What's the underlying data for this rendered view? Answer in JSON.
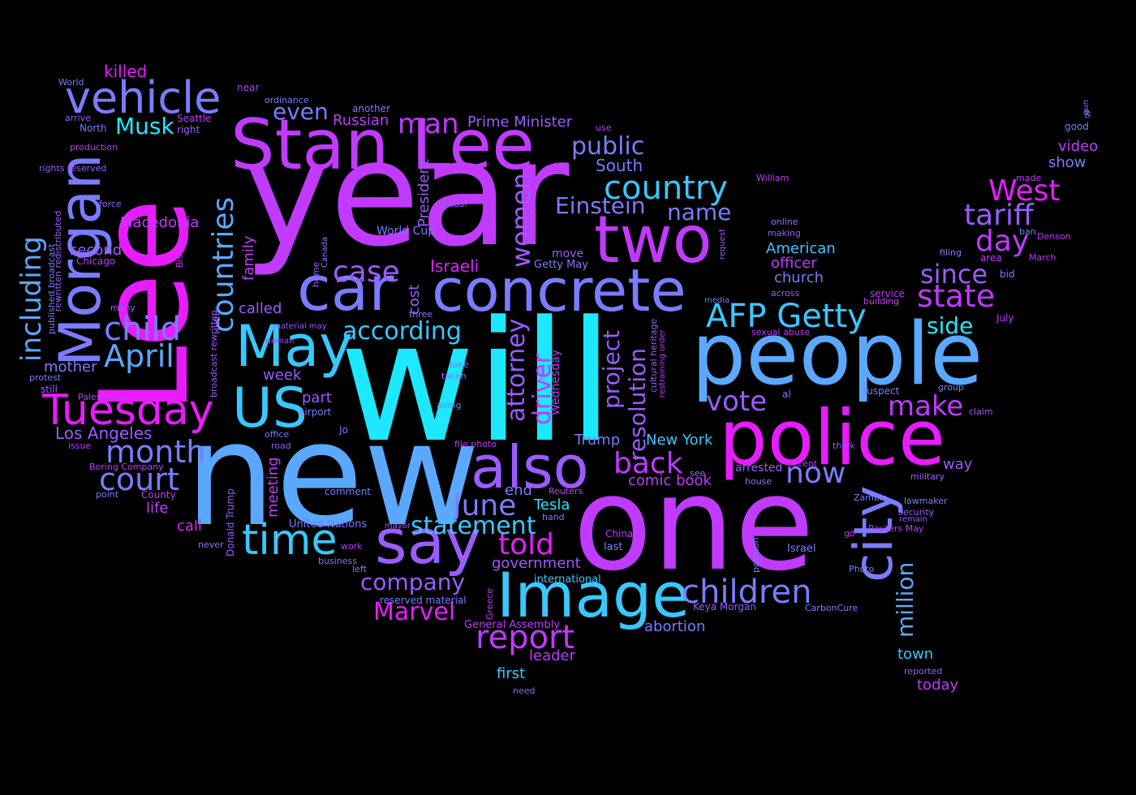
{
  "colors": {
    "background": "#000000",
    "magenta": "#e81cff",
    "violet": "#c03aff",
    "purple": "#9a5cff",
    "indigo": "#7a7cff",
    "blue": "#5aa8ff",
    "sky": "#38c8ff",
    "cyan": "#1ee8ff"
  },
  "words": [
    {
      "text": "will",
      "color": "cyan"
    },
    {
      "text": "new",
      "color": "blue"
    },
    {
      "text": "one",
      "color": "violet"
    },
    {
      "text": "year",
      "color": "violet"
    },
    {
      "text": "Lee",
      "color": "magenta"
    },
    {
      "text": "people",
      "color": "blue"
    },
    {
      "text": "police",
      "color": "magenta"
    },
    {
      "text": "Stan Lee",
      "color": "violet"
    },
    {
      "text": "concrete",
      "color": "indigo"
    },
    {
      "text": "two",
      "color": "violet"
    },
    {
      "text": "car",
      "color": "indigo"
    },
    {
      "text": "Morgan",
      "color": "indigo"
    },
    {
      "text": "Image",
      "color": "sky"
    },
    {
      "text": "say",
      "color": "purple"
    },
    {
      "text": "also",
      "color": "purple"
    },
    {
      "text": "May",
      "color": "sky"
    },
    {
      "text": "US",
      "color": "sky"
    },
    {
      "text": "city",
      "color": "indigo"
    },
    {
      "text": "vehicle",
      "color": "indigo"
    },
    {
      "text": "Tuesday",
      "color": "magenta"
    },
    {
      "text": "time",
      "color": "sky"
    },
    {
      "text": "AFP Getty",
      "color": "sky"
    },
    {
      "text": "children",
      "color": "indigo"
    },
    {
      "text": "report",
      "color": "violet"
    },
    {
      "text": "country",
      "color": "sky"
    },
    {
      "text": "child",
      "color": "indigo"
    },
    {
      "text": "April",
      "color": "blue"
    },
    {
      "text": "countries",
      "color": "blue"
    },
    {
      "text": "including",
      "color": "blue"
    },
    {
      "text": "court",
      "color": "indigo"
    },
    {
      "text": "month",
      "color": "indigo"
    },
    {
      "text": "state",
      "color": "violet"
    },
    {
      "text": "case",
      "color": "purple"
    },
    {
      "text": "West",
      "color": "magenta"
    },
    {
      "text": "tariff",
      "color": "purple"
    },
    {
      "text": "day",
      "color": "violet"
    },
    {
      "text": "man",
      "color": "violet"
    },
    {
      "text": "women",
      "color": "purple"
    },
    {
      "text": "since",
      "color": "purple"
    },
    {
      "text": "make",
      "color": "violet"
    },
    {
      "text": "back",
      "color": "violet"
    },
    {
      "text": "vote",
      "color": "purple"
    },
    {
      "text": "June",
      "color": "indigo"
    },
    {
      "text": "told",
      "color": "magenta"
    },
    {
      "text": "statement",
      "color": "sky"
    },
    {
      "text": "now",
      "color": "indigo"
    },
    {
      "text": "million",
      "color": "blue"
    },
    {
      "text": "company",
      "color": "purple"
    },
    {
      "text": "Marvel",
      "color": "magenta"
    },
    {
      "text": "driver",
      "color": "violet"
    },
    {
      "text": "attorney",
      "color": "purple"
    },
    {
      "text": "according",
      "color": "sky"
    },
    {
      "text": "Einstein",
      "color": "indigo"
    },
    {
      "text": "public",
      "color": "indigo"
    },
    {
      "text": "name",
      "color": "indigo"
    },
    {
      "text": "resolution",
      "color": "purple"
    },
    {
      "text": "project",
      "color": "purple"
    },
    {
      "text": "Musk",
      "color": "cyan"
    },
    {
      "text": "side",
      "color": "cyan"
    },
    {
      "text": "even",
      "color": "indigo"
    },
    {
      "text": "Russian",
      "color": "violet"
    },
    {
      "text": "Prime Minister",
      "color": "purple"
    },
    {
      "text": "Israeli",
      "color": "magenta"
    },
    {
      "text": "South",
      "color": "indigo"
    },
    {
      "text": "killed",
      "color": "magenta"
    },
    {
      "text": "Macedonia",
      "color": "violet"
    },
    {
      "text": "second",
      "color": "purple"
    },
    {
      "text": "Los Angeles",
      "color": "purple"
    },
    {
      "text": "called",
      "color": "purple"
    },
    {
      "text": "mother",
      "color": "indigo"
    },
    {
      "text": "week",
      "color": "purple"
    },
    {
      "text": "part",
      "color": "purple"
    },
    {
      "text": "life",
      "color": "violet"
    },
    {
      "text": "call",
      "color": "magenta"
    },
    {
      "text": "meeting",
      "color": "violet"
    },
    {
      "text": "family",
      "color": "violet"
    },
    {
      "text": "cost",
      "color": "purple"
    },
    {
      "text": "President",
      "color": "purple"
    },
    {
      "text": "World Cup",
      "color": "indigo"
    },
    {
      "text": "officer",
      "color": "violet"
    },
    {
      "text": "American",
      "color": "sky"
    },
    {
      "text": "church",
      "color": "indigo"
    },
    {
      "text": "video",
      "color": "violet"
    },
    {
      "text": "show",
      "color": "indigo"
    },
    {
      "text": "Tesla",
      "color": "cyan"
    },
    {
      "text": "end",
      "color": "indigo"
    },
    {
      "text": "comic book",
      "color": "violet"
    },
    {
      "text": "Trump",
      "color": "indigo"
    },
    {
      "text": "New York",
      "color": "sky"
    },
    {
      "text": "government",
      "color": "purple"
    },
    {
      "text": "leader",
      "color": "violet"
    },
    {
      "text": "first",
      "color": "sky"
    },
    {
      "text": "abortion",
      "color": "indigo"
    },
    {
      "text": "Keya Morgan",
      "color": "purple"
    },
    {
      "text": "town",
      "color": "sky"
    },
    {
      "text": "today",
      "color": "violet"
    },
    {
      "text": "way",
      "color": "purple"
    },
    {
      "text": "arrested",
      "color": "purple"
    },
    {
      "text": "Wednesday",
      "color": "violet"
    },
    {
      "text": "Getty May",
      "color": "indigo"
    },
    {
      "text": "move",
      "color": "purple"
    },
    {
      "text": "General Assembly",
      "color": "violet"
    },
    {
      "text": "international",
      "color": "sky"
    },
    {
      "text": "reserved material",
      "color": "indigo"
    },
    {
      "text": "United Nations",
      "color": "indigo"
    },
    {
      "text": "Donald Trump",
      "color": "purple"
    },
    {
      "text": "County",
      "color": "violet"
    },
    {
      "text": "point",
      "color": "indigo"
    },
    {
      "text": "Boring Company",
      "color": "violet"
    },
    {
      "text": "issue",
      "color": "violet"
    },
    {
      "text": "Palestinian",
      "color": "violet"
    },
    {
      "text": "still",
      "color": "purple"
    },
    {
      "text": "protest",
      "color": "indigo"
    },
    {
      "text": "many",
      "color": "purple"
    },
    {
      "text": "Chicago",
      "color": "violet"
    },
    {
      "text": "force",
      "color": "purple"
    },
    {
      "text": "rights reserved",
      "color": "purple"
    },
    {
      "text": "production",
      "color": "violet"
    },
    {
      "text": "North",
      "color": "indigo"
    },
    {
      "text": "arrive",
      "color": "purple"
    },
    {
      "text": "World",
      "color": "indigo"
    },
    {
      "text": "near",
      "color": "violet"
    },
    {
      "text": "ordinance",
      "color": "indigo"
    },
    {
      "text": "Seattle",
      "color": "violet"
    },
    {
      "text": "right",
      "color": "purple"
    },
    {
      "text": "another",
      "color": "indigo"
    },
    {
      "text": "use",
      "color": "violet"
    },
    {
      "text": "Bishop",
      "color": "violet"
    },
    {
      "text": "published broadcast",
      "color": "indigo"
    },
    {
      "text": "rewritten redistributed",
      "color": "purple"
    },
    {
      "text": "broadcast rewritten",
      "color": "purple"
    },
    {
      "text": "written",
      "color": "purple"
    },
    {
      "text": "material may",
      "color": "purple"
    },
    {
      "text": "woman",
      "color": "violet"
    },
    {
      "text": "office",
      "color": "indigo"
    },
    {
      "text": "road",
      "color": "purple"
    },
    {
      "text": "airport",
      "color": "indigo"
    },
    {
      "text": "Jo",
      "color": "indigo"
    },
    {
      "text": "comment",
      "color": "indigo"
    },
    {
      "text": "home",
      "color": "purple"
    },
    {
      "text": "Canada",
      "color": "indigo"
    },
    {
      "text": "three",
      "color": "indigo"
    },
    {
      "text": "sexual",
      "color": "purple"
    },
    {
      "text": "along",
      "color": "indigo"
    },
    {
      "text": "take",
      "color": "indigo"
    },
    {
      "text": "taken",
      "color": "indigo"
    },
    {
      "text": "file photo",
      "color": "violet"
    },
    {
      "text": "mayor",
      "color": "purple"
    },
    {
      "text": "work",
      "color": "violet"
    },
    {
      "text": "left",
      "color": "indigo"
    },
    {
      "text": "business",
      "color": "indigo"
    },
    {
      "text": "Greece",
      "color": "violet"
    },
    {
      "text": "never",
      "color": "indigo"
    },
    {
      "text": "hand",
      "color": "indigo"
    },
    {
      "text": "Reuters",
      "color": "violet"
    },
    {
      "text": "China",
      "color": "violet"
    },
    {
      "text": "last",
      "color": "indigo"
    },
    {
      "text": "cultural heritage",
      "color": "purple"
    },
    {
      "text": "restraining order",
      "color": "violet"
    },
    {
      "text": "men",
      "color": "purple"
    },
    {
      "text": "media",
      "color": "indigo"
    },
    {
      "text": "request",
      "color": "purple"
    },
    {
      "text": "William",
      "color": "violet"
    },
    {
      "text": "online",
      "color": "indigo"
    },
    {
      "text": "making",
      "color": "purple"
    },
    {
      "text": "across",
      "color": "purple"
    },
    {
      "text": "sexual abuse",
      "color": "violet"
    },
    {
      "text": "al",
      "color": "indigo"
    },
    {
      "text": "see",
      "color": "indigo"
    },
    {
      "text": "recent",
      "color": "violet"
    },
    {
      "text": "house",
      "color": "indigo"
    },
    {
      "text": "position",
      "color": "indigo"
    },
    {
      "text": "Israel",
      "color": "indigo"
    },
    {
      "text": "Photo",
      "color": "indigo"
    },
    {
      "text": "CarbonCure",
      "color": "indigo"
    },
    {
      "text": "go",
      "color": "violet"
    },
    {
      "text": "think",
      "color": "purple"
    },
    {
      "text": "military",
      "color": "purple"
    },
    {
      "text": "Zambia",
      "color": "indigo"
    },
    {
      "text": "lawmaker",
      "color": "indigo"
    },
    {
      "text": "Security",
      "color": "purple"
    },
    {
      "text": "remain",
      "color": "purple"
    },
    {
      "text": "Reuters May",
      "color": "violet"
    },
    {
      "text": "reported",
      "color": "purple"
    },
    {
      "text": "need",
      "color": "purple"
    },
    {
      "text": "suspect",
      "color": "indigo"
    },
    {
      "text": "service",
      "color": "violet"
    },
    {
      "text": "building",
      "color": "violet"
    },
    {
      "text": "group",
      "color": "indigo"
    },
    {
      "text": "claim",
      "color": "purple"
    },
    {
      "text": "July",
      "color": "violet"
    },
    {
      "text": "filing",
      "color": "indigo"
    },
    {
      "text": "area",
      "color": "violet"
    },
    {
      "text": "bid",
      "color": "indigo"
    },
    {
      "text": "March",
      "color": "violet"
    },
    {
      "text": "ban",
      "color": "indigo"
    },
    {
      "text": "Denson",
      "color": "violet"
    },
    {
      "text": "made",
      "color": "violet"
    },
    {
      "text": "good",
      "color": "indigo"
    },
    {
      "text": "gun",
      "color": "indigo"
    },
    {
      "text": "go",
      "color": "indigo"
    }
  ]
}
